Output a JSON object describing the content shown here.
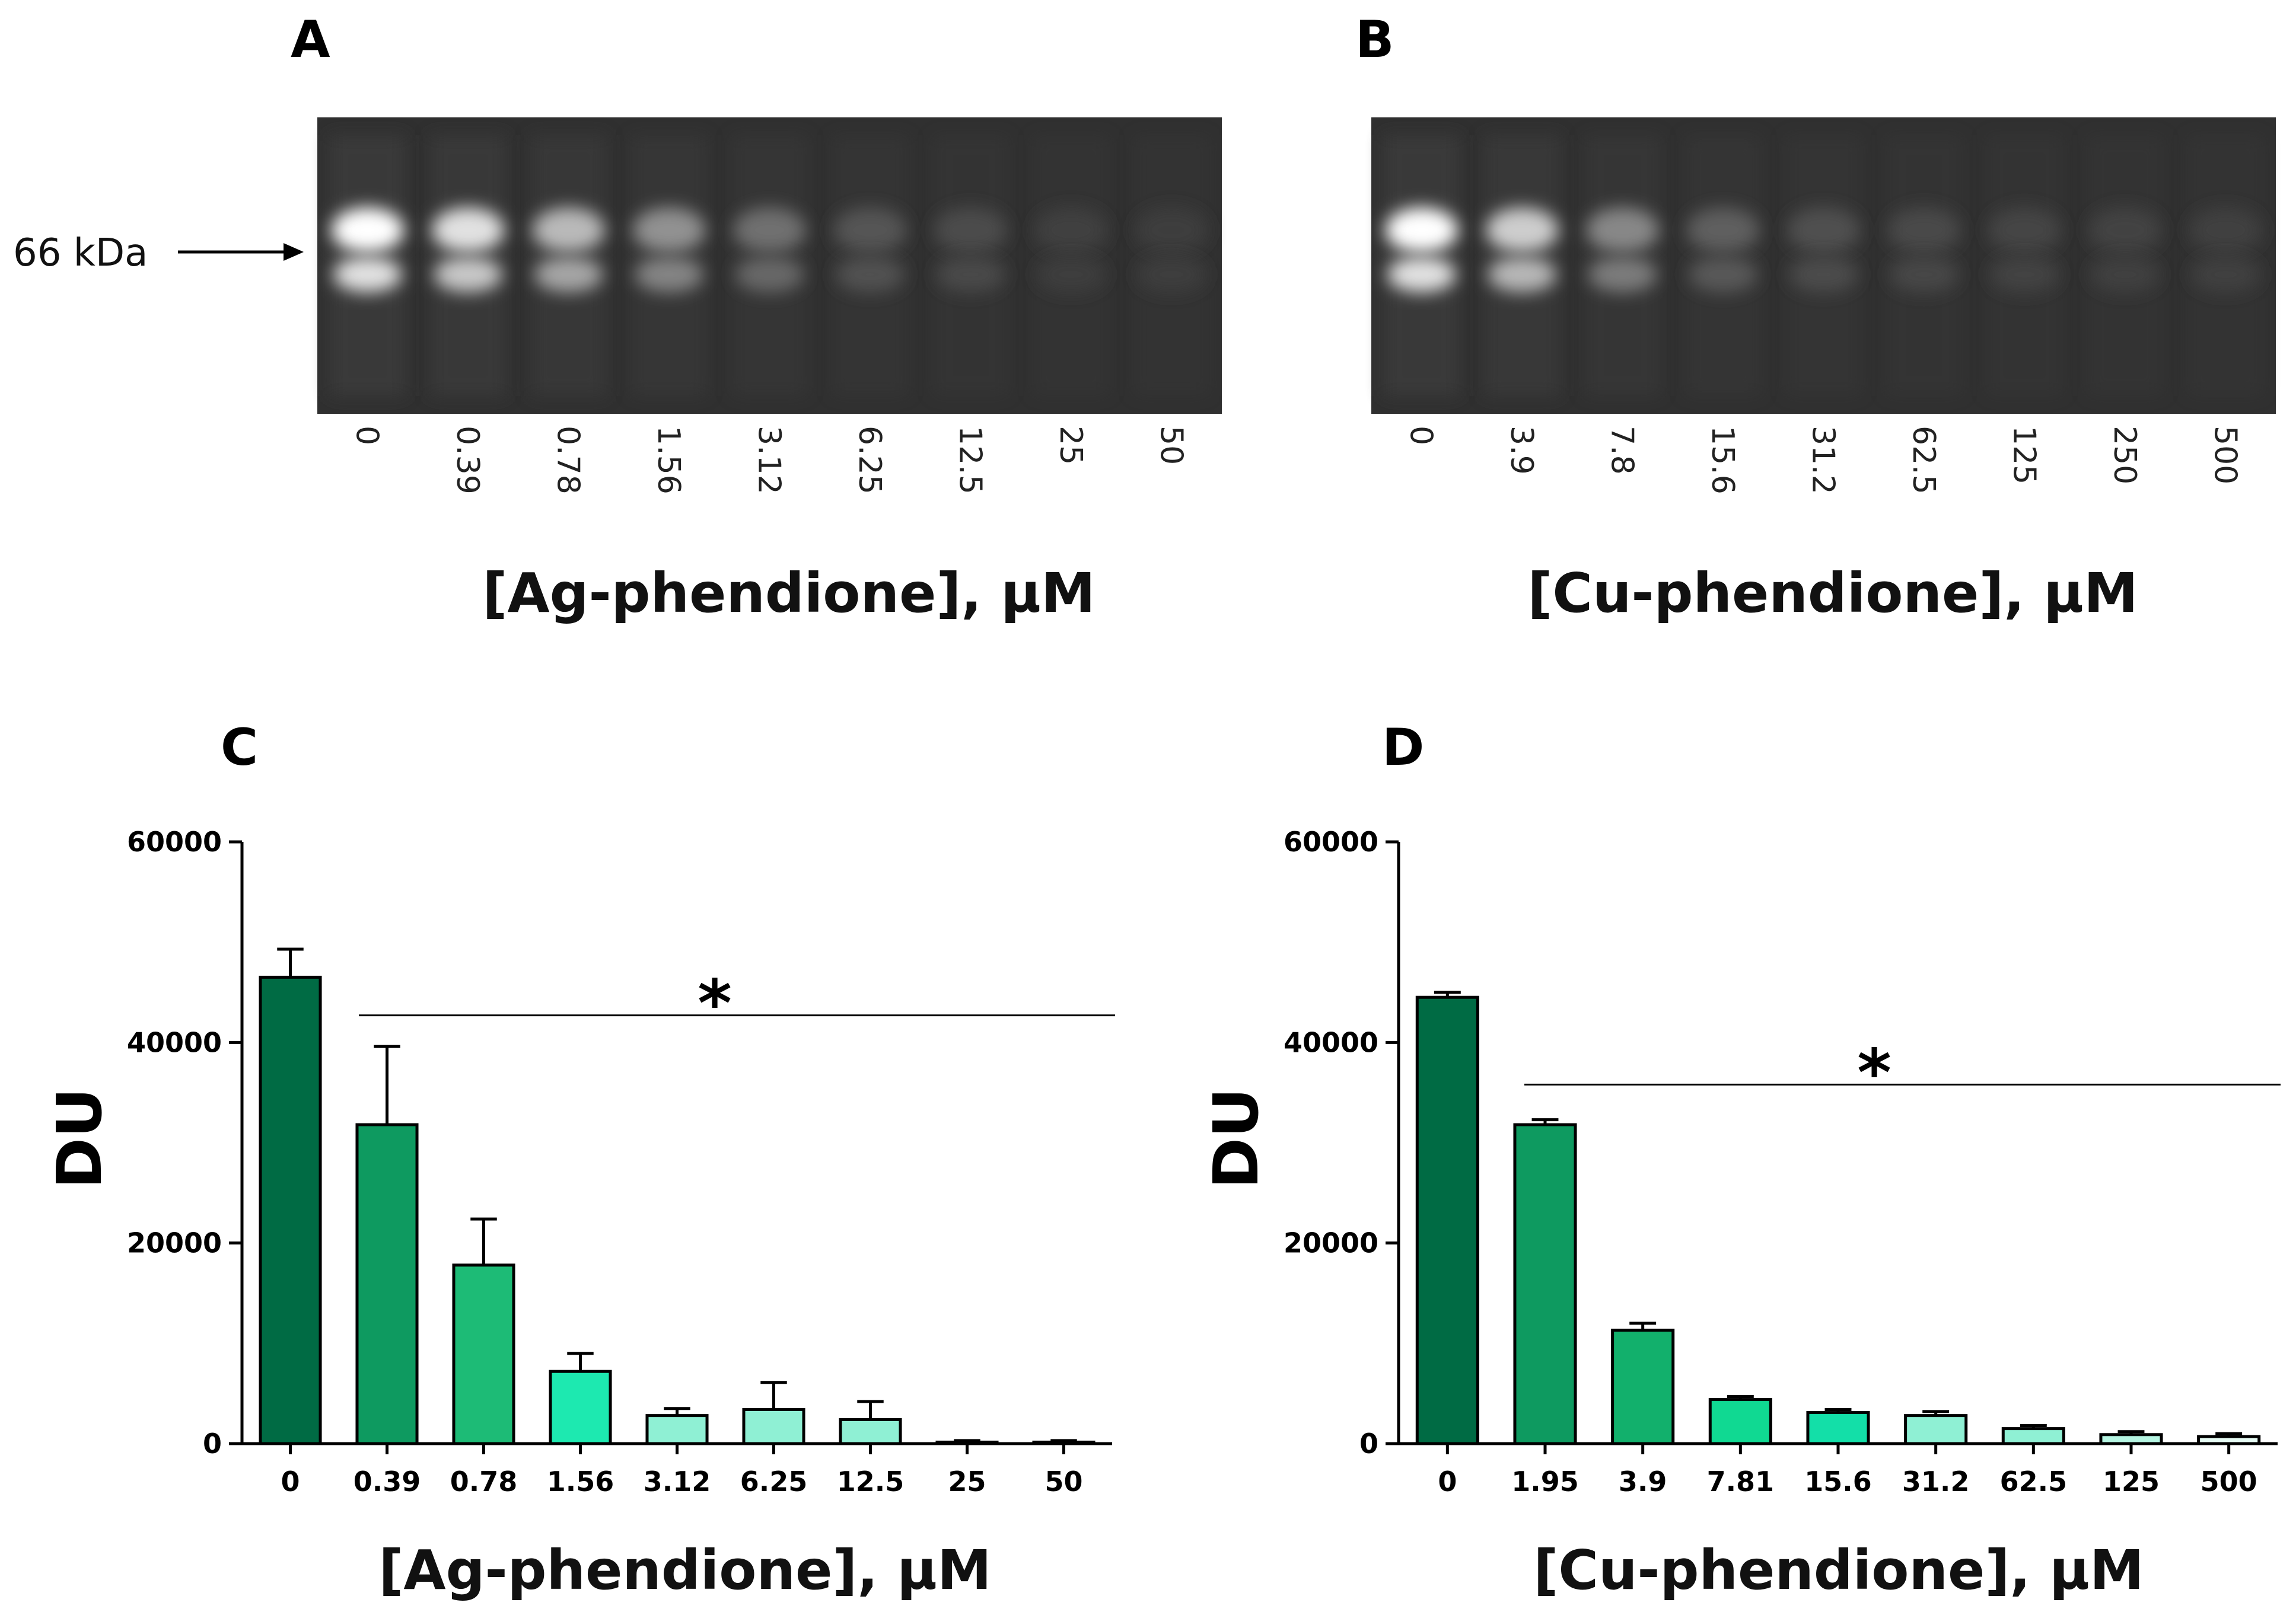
{
  "gels": [
    {
      "panel": "A",
      "marker": "66 kDa",
      "lanes": [
        "0",
        "0.39",
        "0.78",
        "1.56",
        "3.12",
        "6.25",
        "12.5",
        "25",
        "50"
      ],
      "intensity": [
        1.0,
        0.85,
        0.65,
        0.45,
        0.28,
        0.15,
        0.1,
        0.04,
        0.03
      ],
      "xlabel": "[Ag-phendione], µM"
    },
    {
      "panel": "B",
      "marker": "",
      "lanes": [
        "0",
        "3.9",
        "7.8",
        "15.6",
        "31.2",
        "62.5",
        "125",
        "250",
        "500"
      ],
      "intensity": [
        1.0,
        0.75,
        0.4,
        0.2,
        0.12,
        0.09,
        0.07,
        0.06,
        0.05
      ],
      "xlabel": "[Cu-phendione], µM"
    }
  ],
  "chart_data": [
    {
      "panel": "C",
      "type": "bar",
      "categories": [
        "0",
        "0.39",
        "0.78",
        "1.56",
        "3.12",
        "6.25",
        "12.5",
        "25",
        "50"
      ],
      "values": [
        46500,
        31800,
        17800,
        7200,
        2800,
        3400,
        2400,
        150,
        150
      ],
      "errors": [
        2800,
        7800,
        4600,
        1800,
        700,
        2700,
        1800,
        150,
        150
      ],
      "colors": [
        "#006b44",
        "#0e9a60",
        "#1dbb76",
        "#1de9b0",
        "#8ff0d4",
        "#8ff0d4",
        "#8ff0d4",
        "#8ff0d4",
        "#8ff0d4"
      ],
      "ylabel": "DU",
      "xlabel": "[Ag-phendione], µM",
      "ylim": [
        0,
        60000
      ],
      "yticks": [
        "0",
        "20000",
        "40000",
        "60000"
      ],
      "significance": "*",
      "significance_from_category": "0.39",
      "significance_level": 42700
    },
    {
      "panel": "D",
      "type": "bar",
      "categories": [
        "0",
        "1.95",
        "3.9",
        "7.81",
        "15.6",
        "31.2",
        "62.5",
        "125",
        "500"
      ],
      "values": [
        44500,
        31800,
        11300,
        4400,
        3100,
        2800,
        1500,
        900,
        700
      ],
      "errors": [
        500,
        500,
        700,
        300,
        300,
        400,
        300,
        300,
        300
      ],
      "colors": [
        "#006b44",
        "#0e9a60",
        "#12b06c",
        "#10d992",
        "#13dfa8",
        "#8ff0d4",
        "#8ff0d4",
        "#b5f5e2",
        "#e6fbf4"
      ],
      "ylabel": "DU",
      "xlabel": "[Cu-phendione], µM",
      "ylim": [
        0,
        60000
      ],
      "yticks": [
        "0",
        "20000",
        "40000",
        "60000"
      ],
      "significance": "*",
      "significance_from_category": "1.95",
      "significance_level": 35800
    }
  ]
}
